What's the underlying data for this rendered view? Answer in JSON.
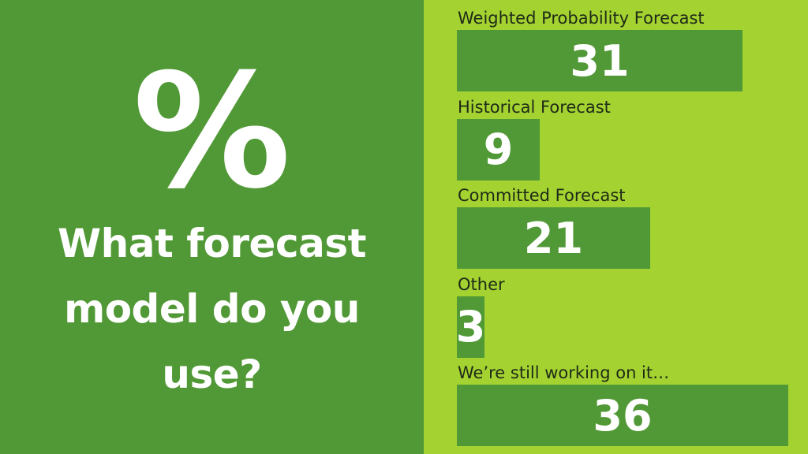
{
  "colors": {
    "left_background": "#519936",
    "right_background": "#a3d231",
    "bar_fill": "#519936",
    "bar_text": "#ffffff",
    "label_text": "#1f2a17"
  },
  "percent_icon": "percent-icon",
  "question": "What forecast model do you use?",
  "chart_data": {
    "type": "bar",
    "orientation": "horizontal",
    "categories": [
      "Weighted Probability Forecast",
      "Historical Forecast",
      "Committed Forecast",
      "Other",
      "We’re still working on it…"
    ],
    "values": [
      31,
      9,
      21,
      3,
      36
    ]
  }
}
